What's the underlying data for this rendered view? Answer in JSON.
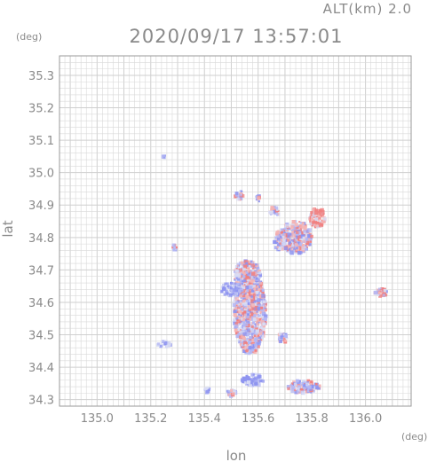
{
  "header": {
    "altitude_label": "ALT(km) 2.0",
    "timestamp": "2020/09/17 13:57:01"
  },
  "chart_data": {
    "type": "heatmap",
    "title": "2020/09/17 13:57:01",
    "subtitle": "ALT(km) 2.0",
    "xlabel": "lon",
    "ylabel": "lat",
    "x_unit": "(deg)",
    "y_unit": "(deg)",
    "xlim": [
      134.86,
      136.17
    ],
    "ylim": [
      34.28,
      35.36
    ],
    "xticks": [
      "135.0",
      "135.2",
      "135.4",
      "135.6",
      "135.8",
      "136.0"
    ],
    "yticks": [
      "34.3",
      "34.4",
      "34.5",
      "34.6",
      "34.7",
      "34.8",
      "34.9",
      "35.0",
      "35.1",
      "35.2",
      "35.3"
    ],
    "grid": true,
    "colors": {
      "positive": "#f08080",
      "negative": "#8e94f0",
      "neutral": "#d8dcf4",
      "grid": "#d9d9d9"
    },
    "echo_regions": [
      {
        "lon": 135.57,
        "lat": 34.57,
        "rx": 0.06,
        "ry": 0.13,
        "mix": "mixed"
      },
      {
        "lon": 135.56,
        "lat": 34.68,
        "rx": 0.05,
        "ry": 0.05,
        "mix": "mixed"
      },
      {
        "lon": 135.5,
        "lat": 34.64,
        "rx": 0.04,
        "ry": 0.02,
        "mix": "negative"
      },
      {
        "lon": 135.74,
        "lat": 34.8,
        "rx": 0.06,
        "ry": 0.05,
        "mix": "mixed"
      },
      {
        "lon": 135.82,
        "lat": 34.86,
        "rx": 0.03,
        "ry": 0.03,
        "mix": "positive"
      },
      {
        "lon": 135.68,
        "lat": 34.79,
        "rx": 0.02,
        "ry": 0.03,
        "mix": "mixed"
      },
      {
        "lon": 135.77,
        "lat": 34.34,
        "rx": 0.06,
        "ry": 0.02,
        "mix": "mixed"
      },
      {
        "lon": 135.58,
        "lat": 34.36,
        "rx": 0.04,
        "ry": 0.02,
        "mix": "negative"
      },
      {
        "lon": 135.53,
        "lat": 34.93,
        "rx": 0.015,
        "ry": 0.015,
        "mix": "mixed"
      },
      {
        "lon": 135.6,
        "lat": 34.92,
        "rx": 0.01,
        "ry": 0.01,
        "mix": "mixed"
      },
      {
        "lon": 135.25,
        "lat": 34.47,
        "rx": 0.025,
        "ry": 0.01,
        "mix": "negative"
      },
      {
        "lon": 136.06,
        "lat": 34.63,
        "rx": 0.025,
        "ry": 0.012,
        "mix": "mixed"
      },
      {
        "lon": 135.69,
        "lat": 34.49,
        "rx": 0.02,
        "ry": 0.015,
        "mix": "mixed"
      },
      {
        "lon": 135.29,
        "lat": 34.77,
        "rx": 0.01,
        "ry": 0.01,
        "mix": "mixed"
      },
      {
        "lon": 135.41,
        "lat": 34.33,
        "rx": 0.01,
        "ry": 0.008,
        "mix": "negative"
      },
      {
        "lon": 135.25,
        "lat": 35.05,
        "rx": 0.004,
        "ry": 0.006,
        "mix": "negative"
      },
      {
        "lon": 135.5,
        "lat": 34.32,
        "rx": 0.02,
        "ry": 0.01,
        "mix": "mixed"
      },
      {
        "lon": 135.66,
        "lat": 34.88,
        "rx": 0.02,
        "ry": 0.015,
        "mix": "mixed"
      }
    ]
  }
}
